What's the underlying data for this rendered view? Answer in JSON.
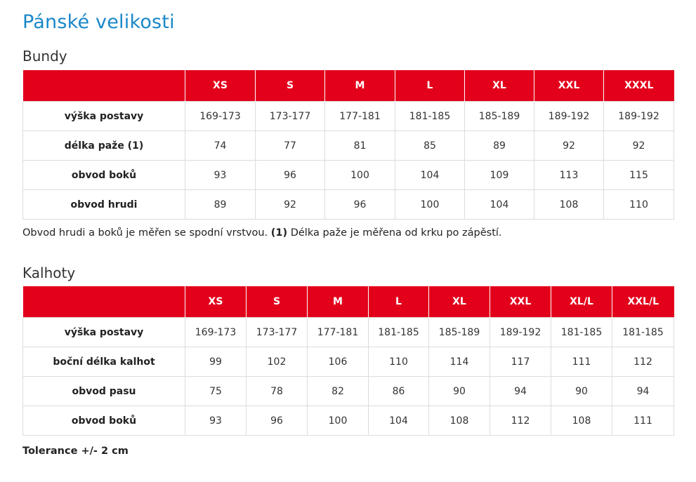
{
  "page": {
    "title": "Pánské velikosti"
  },
  "bundy": {
    "title": "Bundy",
    "headers": [
      "",
      "XS",
      "S",
      "M",
      "L",
      "XL",
      "XXL",
      "XXXL"
    ],
    "rows": [
      {
        "label": "výška postavy",
        "values": [
          "169-173",
          "173-177",
          "177-181",
          "181-185",
          "185-189",
          "189-192",
          "189-192"
        ]
      },
      {
        "label": "délka paže (1)",
        "values": [
          "74",
          "77",
          "81",
          "85",
          "89",
          "92",
          "92"
        ]
      },
      {
        "label": "obvod boků",
        "values": [
          "93",
          "96",
          "100",
          "104",
          "109",
          "113",
          "115"
        ]
      },
      {
        "label": "obvod hrudi",
        "values": [
          "89",
          "92",
          "96",
          "100",
          "104",
          "108",
          "110"
        ]
      }
    ],
    "note": {
      "part1": "Obvod hrudi a boků je měřen se spodní vrstvou.",
      "bold": "(1)",
      "part2": "Délka paže je měřena od krku po zápěstí."
    }
  },
  "kalhoty": {
    "title": "Kalhoty",
    "headers": [
      "",
      "XS",
      "S",
      "M",
      "L",
      "XL",
      "XXL",
      "XL/L",
      "XXL/L"
    ],
    "rows": [
      {
        "label": "výška postavy",
        "values": [
          "169-173",
          "173-177",
          "177-181",
          "181-185",
          "185-189",
          "189-192",
          "181-185",
          "181-185"
        ]
      },
      {
        "label": "boční délka kalhot",
        "values": [
          "99",
          "102",
          "106",
          "110",
          "114",
          "117",
          "111",
          "112"
        ]
      },
      {
        "label": "obvod pasu",
        "values": [
          "75",
          "78",
          "82",
          "86",
          "90",
          "94",
          "90",
          "94"
        ]
      },
      {
        "label": "obvod boků",
        "values": [
          "93",
          "96",
          "100",
          "104",
          "108",
          "112",
          "108",
          "111"
        ]
      }
    ],
    "note": "Tolerance +/- 2 cm"
  }
}
